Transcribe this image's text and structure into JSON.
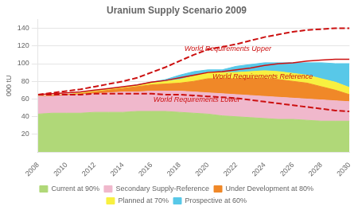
{
  "chart_data": {
    "type": "area",
    "title": "Uranium Supply Scenario 2009",
    "ylabel": "000 tU",
    "x": [
      2008,
      2009,
      2010,
      2011,
      2012,
      2013,
      2014,
      2015,
      2016,
      2017,
      2018,
      2019,
      2020,
      2021,
      2022,
      2023,
      2024,
      2025,
      2026,
      2027,
      2028,
      2029,
      2030
    ],
    "xlim": [
      2008,
      2030
    ],
    "xticks": [
      2008,
      2010,
      2012,
      2014,
      2016,
      2018,
      2020,
      2022,
      2024,
      2026,
      2028,
      2030
    ],
    "ylim": [
      0,
      150
    ],
    "yticks": [
      20,
      40,
      60,
      80,
      100,
      120,
      140
    ],
    "grid": "y",
    "legend": "bottom",
    "series": [
      {
        "name": "Current at 90%",
        "type": "area",
        "color": "#b0d878",
        "values": [
          43,
          44,
          44,
          44,
          45,
          45,
          45,
          46,
          46,
          46,
          45,
          44,
          43,
          41,
          40,
          39,
          38,
          37,
          37,
          36,
          35,
          35,
          35
        ]
      },
      {
        "name": "Secondary Supply-Reference",
        "type": "area",
        "color": "#f0b8cc",
        "values": [
          63,
          63,
          64,
          65,
          66,
          67,
          68,
          68,
          69,
          69,
          69,
          68,
          67,
          66,
          65,
          64,
          63,
          62,
          61,
          60,
          59,
          58,
          57
        ]
      },
      {
        "name": "Under Development at 80%",
        "type": "area",
        "color": "#f08828",
        "values": [
          63,
          64,
          65,
          66,
          68,
          70,
          72,
          74,
          76,
          77,
          78,
          80,
          83,
          83,
          83,
          83,
          83,
          82,
          80,
          78,
          74,
          70,
          65
        ]
      },
      {
        "name": "Planned at 70%",
        "type": "area",
        "color": "#f8f040",
        "values": [
          63,
          64,
          65,
          67,
          69,
          71,
          73,
          75,
          78,
          80,
          82,
          86,
          90,
          90,
          90,
          91,
          92,
          91,
          89,
          87,
          83,
          79,
          73
        ]
      },
      {
        "name": "Prospective at 60%",
        "type": "area",
        "color": "#58c8e8",
        "values": [
          63,
          64,
          65,
          67,
          69,
          71,
          73,
          76,
          79,
          82,
          87,
          91,
          93,
          93,
          97,
          99,
          101,
          101,
          101,
          101,
          101,
          100,
          100
        ]
      },
      {
        "name": "World Requirements Upper",
        "type": "line",
        "color": "#cc1010",
        "line_style": "dashed",
        "values": [
          65,
          67,
          69,
          71,
          74,
          77,
          80,
          84,
          90,
          96,
          103,
          110,
          116,
          119,
          122,
          126,
          130,
          133,
          136,
          138,
          139,
          140,
          140
        ]
      },
      {
        "name": "World Requirements Reference",
        "type": "line",
        "color": "#cc1010",
        "line_style": "solid",
        "values": [
          65,
          66,
          67,
          68,
          70,
          72,
          74,
          76,
          79,
          81,
          84,
          87,
          90,
          91,
          93,
          95,
          98,
          100,
          101,
          103,
          104,
          105,
          105
        ]
      },
      {
        "name": "World Requirements Lower",
        "type": "line",
        "color": "#cc1010",
        "line_style": "dashed",
        "values": [
          65,
          65,
          65,
          65,
          66,
          66,
          66,
          66,
          66,
          65,
          65,
          64,
          63,
          62,
          61,
          59,
          57,
          55,
          53,
          51,
          49,
          47,
          46
        ]
      }
    ]
  }
}
